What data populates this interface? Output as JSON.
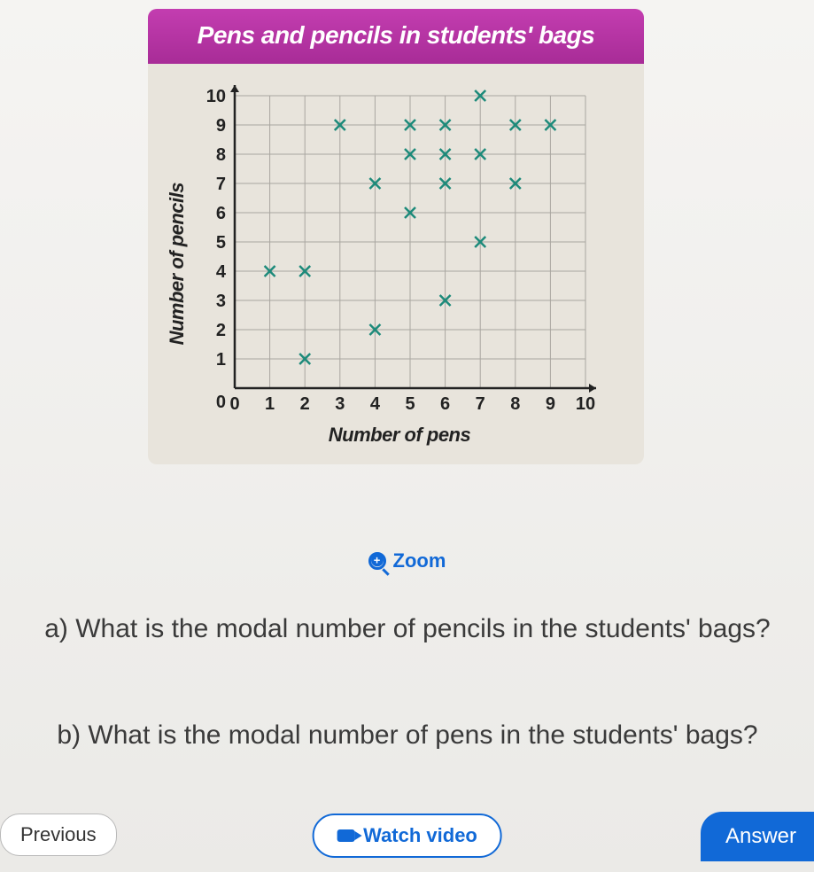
{
  "chart": {
    "title": "Pens and pencils in students' bags",
    "xlabel": "Number of pens",
    "ylabel": "Number of pencils",
    "type": "scatter",
    "xlim": [
      0,
      10
    ],
    "ylim": [
      0,
      10
    ],
    "xtick_step": 1,
    "ytick_step": 1,
    "marker_style": "x",
    "marker_color": "#1d8a7a",
    "grid_color": "#a9a6a0",
    "axis_color": "#222222",
    "background_color": "#e8e4dc",
    "header_bg": "#b933a4",
    "header_text_color": "#ffffff",
    "points": [
      {
        "x": 1,
        "y": 4
      },
      {
        "x": 2,
        "y": 1
      },
      {
        "x": 2,
        "y": 4
      },
      {
        "x": 3,
        "y": 9
      },
      {
        "x": 4,
        "y": 2
      },
      {
        "x": 4,
        "y": 7
      },
      {
        "x": 5,
        "y": 6
      },
      {
        "x": 5,
        "y": 8
      },
      {
        "x": 5,
        "y": 9
      },
      {
        "x": 6,
        "y": 3
      },
      {
        "x": 6,
        "y": 7
      },
      {
        "x": 6,
        "y": 8
      },
      {
        "x": 6,
        "y": 9
      },
      {
        "x": 7,
        "y": 5
      },
      {
        "x": 7,
        "y": 8
      },
      {
        "x": 7,
        "y": 10
      },
      {
        "x": 8,
        "y": 7
      },
      {
        "x": 8,
        "y": 9
      },
      {
        "x": 9,
        "y": 9
      }
    ]
  },
  "zoom_label": "Zoom",
  "questions": {
    "a": "a) What is the modal number of pencils in the students' bags?",
    "b": "b) What is the modal number of pens in the students' bags?"
  },
  "buttons": {
    "previous": "Previous",
    "watch_video": "Watch video",
    "answer": "Answer"
  },
  "colors": {
    "link_blue": "#1169d7",
    "text_gray": "#3a3a3a"
  }
}
